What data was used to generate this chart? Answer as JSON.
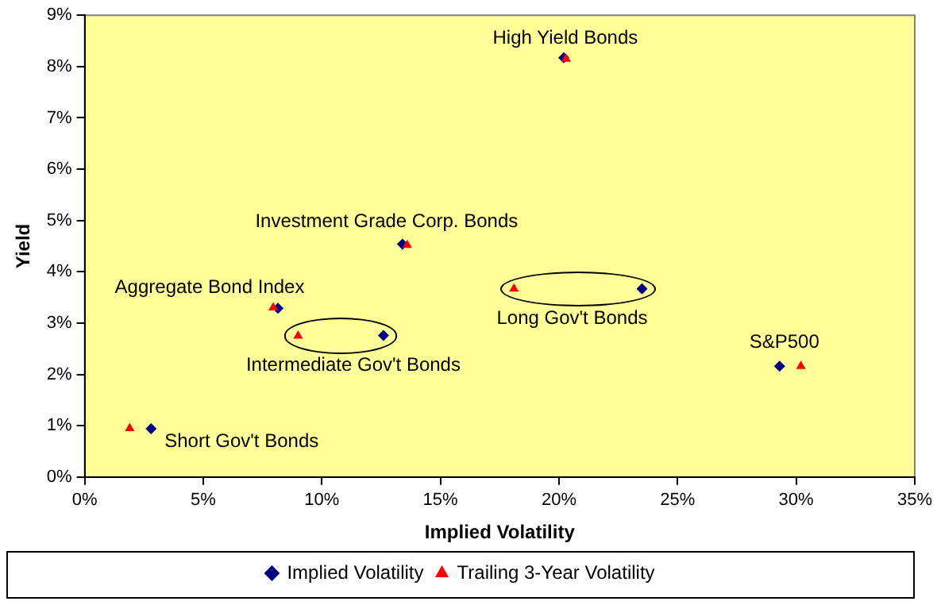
{
  "chart_data": {
    "type": "scatter",
    "xlabel": "Implied Volatility",
    "ylabel": "Yield",
    "xlim": [
      0,
      35
    ],
    "xticks": [
      {
        "value": 0,
        "label": "0%"
      },
      {
        "value": 5,
        "label": "5%"
      },
      {
        "value": 10,
        "label": "10%"
      },
      {
        "value": 15,
        "label": "15%"
      },
      {
        "value": 20,
        "label": "20%"
      },
      {
        "value": 25,
        "label": "25%"
      },
      {
        "value": 30,
        "label": "30%"
      },
      {
        "value": 35,
        "label": "35%"
      }
    ],
    "ylim": [
      0,
      9
    ],
    "yticks": [
      {
        "value": 0,
        "label": "0%"
      },
      {
        "value": 1,
        "label": "1%"
      },
      {
        "value": 2,
        "label": "2%"
      },
      {
        "value": 3,
        "label": "3%"
      },
      {
        "value": 4,
        "label": "4%"
      },
      {
        "value": 5,
        "label": "5%"
      },
      {
        "value": 6,
        "label": "6%"
      },
      {
        "value": 7,
        "label": "7%"
      },
      {
        "value": 8,
        "label": "8%"
      },
      {
        "value": 9,
        "label": "9%"
      }
    ],
    "grid": false,
    "legend": "bottom",
    "series": [
      {
        "name": "Implied Volatility",
        "color": "#000080",
        "marker": "diamond",
        "x": [
          2.8,
          8.15,
          12.6,
          13.4,
          20.2,
          23.5,
          29.3
        ],
        "values": [
          0.94,
          3.29,
          2.76,
          4.54,
          8.17,
          3.67,
          2.16
        ]
      },
      {
        "name": "Trailing 3-Year Volatility",
        "color": "#ff0000",
        "marker": "triangle",
        "x": [
          1.9,
          7.95,
          9.0,
          13.6,
          20.3,
          18.1,
          30.2
        ],
        "values": [
          0.95,
          3.3,
          2.75,
          4.52,
          8.15,
          3.67,
          2.16
        ]
      }
    ],
    "annotations": [
      {
        "text": "High Yield Bonds",
        "x": 20.2,
        "y": 8.17
      },
      {
        "text": "Investment Grade Corp. Bonds",
        "x": 13.4,
        "y": 4.54
      },
      {
        "text": "Aggregate Bond Index",
        "x": 8.15,
        "y": 3.29
      },
      {
        "text": "Intermediate Gov't Bonds",
        "x": 12.6,
        "y": 2.76
      },
      {
        "text": "Long Gov't Bonds",
        "x": 23.5,
        "y": 3.67
      },
      {
        "text": "S&P500",
        "x": 29.3,
        "y": 2.16
      },
      {
        "text": "Short Gov't Bonds",
        "x": 2.8,
        "y": 0.94
      }
    ]
  }
}
